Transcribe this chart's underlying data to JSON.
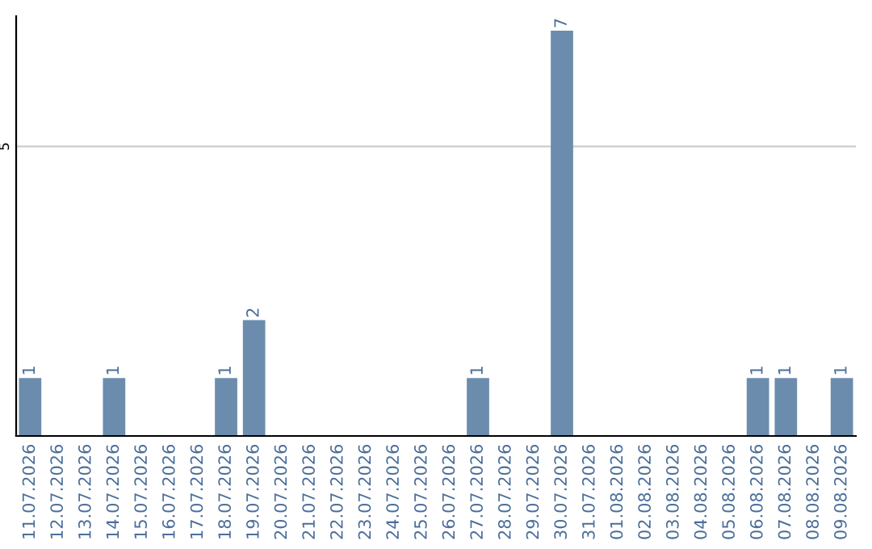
{
  "chart_data": {
    "type": "bar",
    "categories": [
      "11.07.2026",
      "12.07.2026",
      "13.07.2026",
      "14.07.2026",
      "15.07.2026",
      "16.07.2026",
      "17.07.2026",
      "18.07.2026",
      "19.07.2026",
      "20.07.2026",
      "21.07.2026",
      "22.07.2026",
      "23.07.2026",
      "24.07.2026",
      "25.07.2026",
      "26.07.2026",
      "27.07.2026",
      "28.07.2026",
      "29.07.2026",
      "30.07.2026",
      "31.07.2026",
      "01.08.2026",
      "02.08.2026",
      "03.08.2026",
      "04.08.2026",
      "05.08.2026",
      "06.08.2026",
      "07.08.2026",
      "08.08.2026",
      "09.08.2026"
    ],
    "values": [
      1,
      0,
      0,
      1,
      0,
      0,
      0,
      1,
      2,
      0,
      0,
      0,
      0,
      0,
      0,
      0,
      1,
      0,
      0,
      7,
      0,
      0,
      0,
      0,
      0,
      0,
      1,
      1,
      0,
      1
    ],
    "value_labels": [
      "1",
      null,
      null,
      "1",
      null,
      null,
      null,
      "1",
      "2",
      null,
      null,
      null,
      null,
      null,
      null,
      null,
      "1",
      null,
      null,
      "7",
      null,
      null,
      null,
      null,
      null,
      null,
      "1",
      "1",
      null,
      "1"
    ],
    "color": "#6b8cad",
    "ylim": [
      0,
      7.25
    ],
    "yticks": [
      5
    ],
    "grid": "y",
    "legend": false
  }
}
